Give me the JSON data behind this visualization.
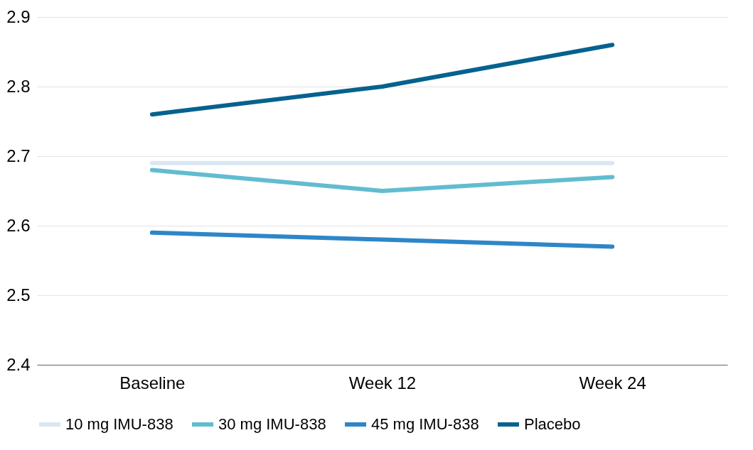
{
  "chart_data": {
    "type": "line",
    "categories": [
      "Baseline",
      "Week 12",
      "Week 24"
    ],
    "series": [
      {
        "name": "10 mg IMU-838",
        "color": "#dae6f3",
        "values": [
          2.69,
          2.69,
          2.69
        ]
      },
      {
        "name": "30 mg IMU-838",
        "color": "#62bccf",
        "values": [
          2.68,
          2.65,
          2.67
        ]
      },
      {
        "name": "45 mg IMU-838",
        "color": "#2e86c8",
        "values": [
          2.59,
          2.58,
          2.57
        ]
      },
      {
        "name": "Placebo",
        "color": "#05628f",
        "values": [
          2.76,
          2.8,
          2.86
        ]
      }
    ],
    "ylim": [
      2.4,
      2.9
    ],
    "yticks": [
      2.4,
      2.5,
      2.6,
      2.7,
      2.8,
      2.9
    ],
    "grid": "y",
    "legend": "bottom",
    "marker": "none",
    "line_style": "solid"
  }
}
